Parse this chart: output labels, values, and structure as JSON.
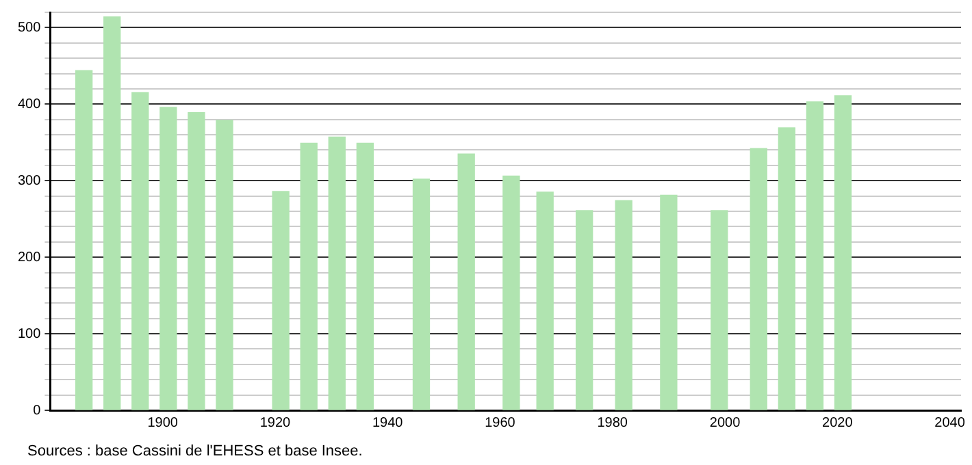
{
  "chart_data": {
    "type": "bar",
    "x": [
      1886,
      1891,
      1896,
      1901,
      1906,
      1911,
      1921,
      1926,
      1931,
      1936,
      1946,
      1954,
      1962,
      1968,
      1975,
      1982,
      1990,
      1999,
      2006,
      2011,
      2016,
      2021
    ],
    "values": [
      444,
      514,
      415,
      396,
      389,
      379,
      286,
      349,
      357,
      349,
      302,
      335,
      306,
      285,
      261,
      274,
      281,
      261,
      342,
      369,
      403,
      411
    ],
    "color": "#b0e4b0",
    "xlim": [
      1880,
      2042
    ],
    "xticks": [
      1900,
      1920,
      1940,
      1960,
      1980,
      2000,
      2020,
      2040
    ],
    "ylim": [
      0,
      520
    ],
    "yticks": [
      0,
      {
        "value": 20,
        "label": null
      },
      {
        "value": 40,
        "label": null
      },
      {
        "value": 60,
        "label": null
      },
      {
        "value": 80,
        "label": null
      },
      100,
      {
        "value": 120,
        "label": null
      },
      {
        "value": 140,
        "label": null
      },
      {
        "value": 160,
        "label": null
      },
      {
        "value": 180,
        "label": null
      },
      200,
      {
        "value": 220,
        "label": null
      },
      {
        "value": 240,
        "label": null
      },
      {
        "value": 260,
        "label": null
      },
      {
        "value": 280,
        "label": null
      },
      300,
      {
        "value": 320,
        "label": null
      },
      {
        "value": 340,
        "label": null
      },
      {
        "value": 360,
        "label": null
      },
      {
        "value": 380,
        "label": null
      },
      400,
      {
        "value": 420,
        "label": null
      },
      {
        "value": 440,
        "label": null
      },
      {
        "value": 460,
        "label": null
      },
      {
        "value": 480,
        "label": null
      },
      500,
      {
        "value": 520,
        "label": null
      }
    ],
    "grid": "y",
    "legend": false,
    "annotations": [
      "Sources : base Cassini de l'EHESS et base Insee."
    ]
  }
}
